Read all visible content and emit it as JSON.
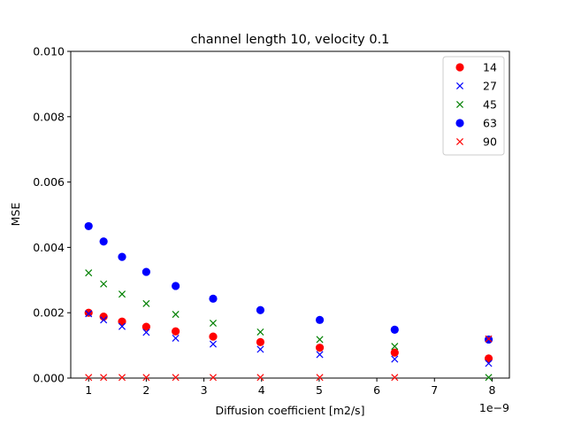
{
  "chart_data": {
    "type": "scatter",
    "title": "channel length 10, velocity 0.1",
    "xlabel": "Diffusion coefficient [m2/s]",
    "ylabel": "MSE",
    "x_offset_label": "1e−9",
    "xlim": [
      0.69,
      8.3
    ],
    "ylim": [
      0,
      0.01
    ],
    "xticks": [
      1,
      2,
      3,
      4,
      5,
      6,
      7,
      8
    ],
    "xtick_labels": [
      "1",
      "2",
      "3",
      "4",
      "5",
      "6",
      "7",
      "8"
    ],
    "yticks": [
      0,
      0.002,
      0.004,
      0.006,
      0.008,
      0.01
    ],
    "ytick_labels": [
      "0.000",
      "0.002",
      "0.004",
      "0.006",
      "0.008",
      "0.010"
    ],
    "grid": false,
    "legend_position": "top-right",
    "x": [
      1.0,
      1.26,
      1.58,
      2.0,
      2.51,
      3.16,
      3.98,
      5.01,
      6.31,
      7.94
    ],
    "series": [
      {
        "name": "14",
        "color": "#ff0000",
        "marker": "circle",
        "values": [
          0.002,
          0.00188,
          0.00173,
          0.00157,
          0.00143,
          0.00127,
          0.0011,
          0.00093,
          0.00078,
          0.0006
        ]
      },
      {
        "name": "27",
        "color": "#0000ff",
        "marker": "x",
        "values": [
          0.00197,
          0.00178,
          0.00158,
          0.0014,
          0.00122,
          0.00104,
          0.00088,
          0.00072,
          0.00058,
          0.00045
        ]
      },
      {
        "name": "45",
        "color": "#008000",
        "marker": "x",
        "values": [
          0.00322,
          0.00288,
          0.00257,
          0.00228,
          0.00195,
          0.00168,
          0.00141,
          0.00118,
          0.00097,
          2e-05
        ]
      },
      {
        "name": "63",
        "color": "#0000ff",
        "marker": "circle",
        "values": [
          0.00465,
          0.00418,
          0.00371,
          0.00325,
          0.00282,
          0.00243,
          0.00208,
          0.00178,
          0.00148,
          0.00118
        ]
      },
      {
        "name": "90",
        "color": "#ff0000",
        "marker": "x",
        "values": [
          2e-05,
          2e-05,
          2e-05,
          2e-05,
          2e-05,
          2e-05,
          2e-05,
          2e-05,
          2e-05,
          0.0012
        ]
      }
    ]
  }
}
